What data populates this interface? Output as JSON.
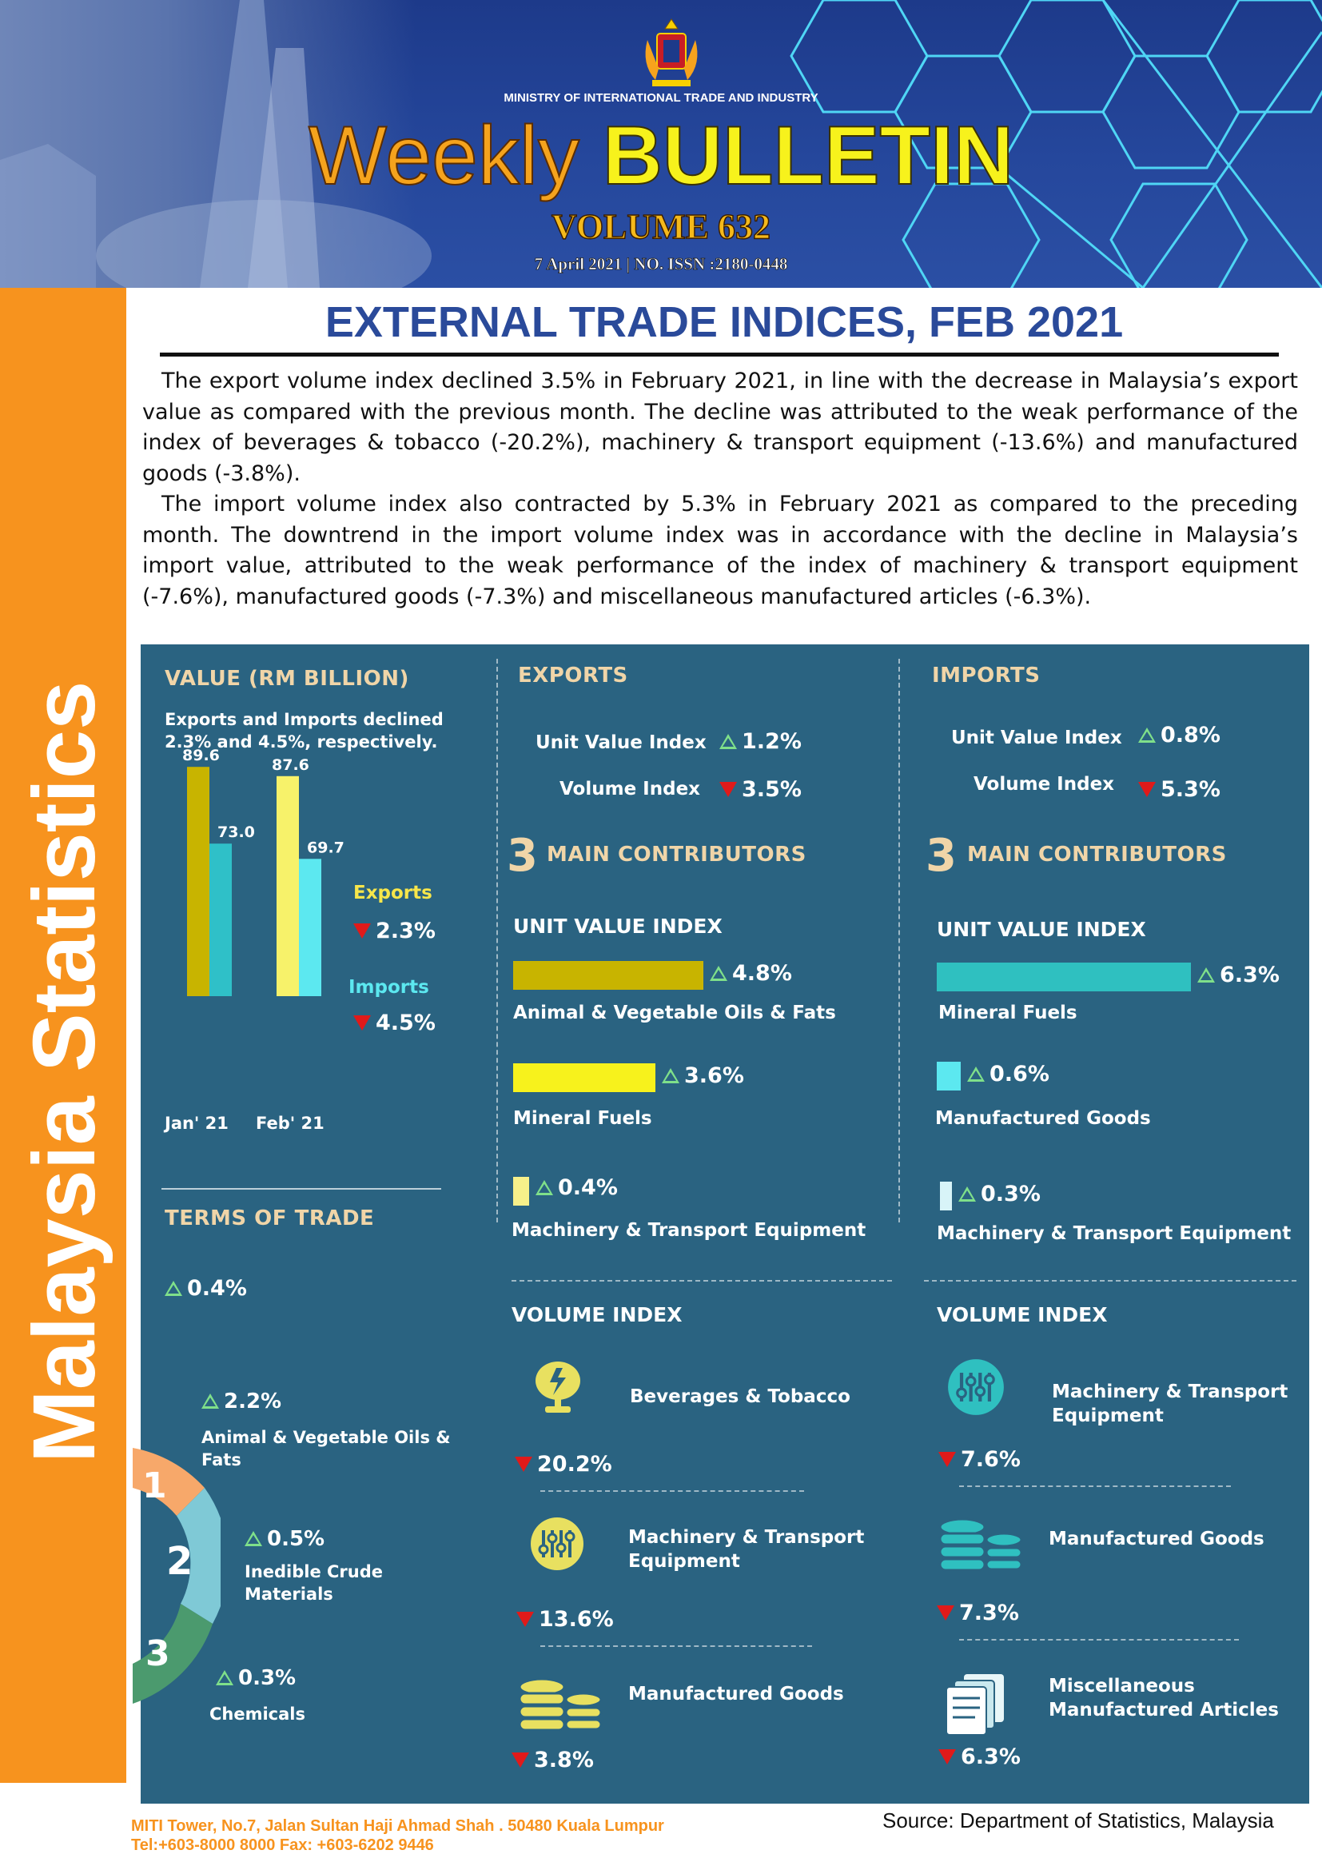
{
  "banner": {
    "ministry": "MINISTRY OF INTERNATIONAL TRADE AND INDUSTRY",
    "title_word1": "Weekly",
    "title_word2": "BULLETIN",
    "volume": "VOLUME 632",
    "issn": "7 April 2021 | NO. ISSN :2180-0448",
    "crest_icon": "malaysia-coat-of-arms-icon"
  },
  "side_label": "Malaysia Statistics",
  "heading": "EXTERNAL TRADE INDICES, FEB 2021",
  "paragraphs": [
    "The export volume index declined 3.5% in February 2021, in line with the decrease in Malaysia’s export value as compared with the previous month. The decline was attributed to the weak performance of the index of beverages & tobacco (-20.2%), machinery & transport equipment (-13.6%) and manufactured goods (-3.8%).",
    "The import volume index also contracted by 5.3% in February 2021 as compared to the preceding month. The downtrend in the import volume index was in accordance  with the decline in Malaysia’s import value, attributed to the weak performance of the index of machinery & transport equipment (-7.6%), manufactured goods (-7.3%) and miscellaneous manufactured articles (-6.3%)."
  ],
  "value_section": {
    "title": "VALUE (RM BILLION)",
    "note_line1": "Exports and Imports declined",
    "note_line2": "2.3% and 4.5%, respectively.",
    "exports_label": "Exports",
    "exports_change": "2.3%",
    "imports_label": "Imports",
    "imports_change": "4.5%"
  },
  "chart_data": {
    "type": "bar",
    "categories": [
      "Jan' 21",
      "Feb' 21"
    ],
    "series": [
      {
        "name": "Exports",
        "values": [
          89.6,
          87.6
        ],
        "labels": [
          "89.6",
          "87.6"
        ]
      },
      {
        "name": "Imports",
        "values": [
          73.0,
          69.7
        ],
        "labels": [
          "73.0",
          "69.7"
        ]
      }
    ],
    "ylim": [
      0,
      95
    ],
    "colors": {
      "exports_jan": "#c8b400",
      "imports_jan": "#2fc0c8",
      "exports_feb": "#f7f26a",
      "imports_feb": "#5ce8f0"
    }
  },
  "terms_of_trade": {
    "title": "TERMS OF TRADE",
    "overall": "0.4%",
    "items": [
      {
        "rank": "1",
        "change": "2.2%",
        "name_line1": "Animal & Vegetable Oils &",
        "name_line2": "Fats"
      },
      {
        "rank": "2",
        "change": "0.5%",
        "name_line1": "Inedible Crude",
        "name_line2": "Materials"
      },
      {
        "rank": "3",
        "change": "0.3%",
        "name_line1": "Chemicals",
        "name_line2": ""
      }
    ],
    "ring_colors": [
      "#f7a86a",
      "#7fc9d6",
      "#4b9a6e"
    ]
  },
  "exports": {
    "title": "EXPORTS",
    "unit_value_label": "Unit Value Index",
    "unit_value_change": "1.2%",
    "volume_label": "Volume Index",
    "volume_change": "3.5%",
    "contrib_number": "3",
    "contrib_title": "MAIN CONTRIBUTORS",
    "uvi_title": "UNIT VALUE INDEX",
    "uvi": [
      {
        "name": "Animal & Vegetable Oils & Fats",
        "change": "4.8%",
        "value": 4.8,
        "color": "#c8b400"
      },
      {
        "name": "Mineral Fuels",
        "change": "3.6%",
        "value": 3.6,
        "color": "#f7f21c"
      },
      {
        "name": "Machinery & Transport Equipment",
        "change": "0.4%",
        "value": 0.4,
        "color": "#f7f08a"
      }
    ],
    "vol_title": "VOLUME INDEX",
    "vol": [
      {
        "name_line1": "Beverages & Tobacco",
        "name_line2": "",
        "change": "20.2%",
        "icon": "wine-glass-icon"
      },
      {
        "name_line1": "Machinery & Transport",
        "name_line2": "Equipment",
        "change": "13.6%",
        "icon": "sliders-icon"
      },
      {
        "name_line1": "Manufactured Goods",
        "name_line2": "",
        "change": "3.8%",
        "icon": "coin-stack-icon"
      }
    ]
  },
  "imports": {
    "title": "IMPORTS",
    "unit_value_label": "Unit Value Index",
    "unit_value_change": "0.8%",
    "volume_label": "Volume Index",
    "volume_change": "5.3%",
    "contrib_number": "3",
    "contrib_title": "MAIN CONTRIBUTORS",
    "uvi_title": "UNIT VALUE INDEX",
    "uvi": [
      {
        "name": "Mineral Fuels",
        "change": "6.3%",
        "value": 6.3,
        "color": "#2fc0c0"
      },
      {
        "name": "Manufactured Goods",
        "change": "0.6%",
        "value": 0.6,
        "color": "#5ce8f0"
      },
      {
        "name": "Machinery & Transport Equipment",
        "change": "0.3%",
        "value": 0.3,
        "color": "#d8f4f8"
      }
    ],
    "vol_title": "VOLUME INDEX",
    "vol": [
      {
        "name_line1": "Machinery & Transport",
        "name_line2": "Equipment",
        "change": "7.6%",
        "icon": "sliders-icon"
      },
      {
        "name_line1": "Manufactured Goods",
        "name_line2": "",
        "change": "7.3%",
        "icon": "coin-stack-icon"
      },
      {
        "name_line1": "Miscellaneous",
        "name_line2": "Manufactured Articles",
        "change": "6.3%",
        "icon": "documents-icon"
      }
    ]
  },
  "footer": {
    "address": "MITI Tower, No.7, Jalan Sultan Haji Ahmad Shah . 50480 Kuala Lumpur",
    "contact": "Tel:+603-8000 8000 Fax: +603-6202 9446",
    "source": "Source: Department of Statistics, Malaysia"
  }
}
